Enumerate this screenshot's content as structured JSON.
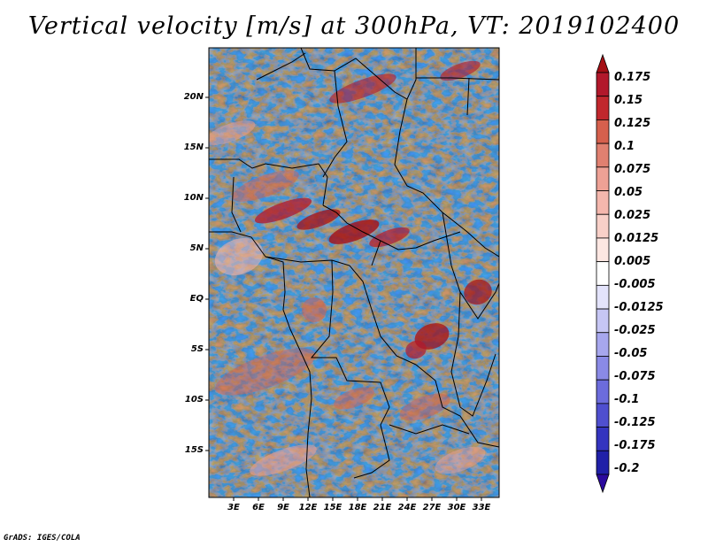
{
  "title": "Vertical velocity [m/s] at 300hPa, VT: 2019102400",
  "y_axis_labels": [
    "20N",
    "15N",
    "10N",
    "5N",
    "EQ",
    "5S",
    "10S",
    "15S"
  ],
  "x_axis_labels": [
    "3E",
    "6E",
    "9E",
    "12E",
    "15E",
    "18E",
    "21E",
    "24E",
    "27E",
    "30E",
    "33E"
  ],
  "colorbar": {
    "labels": [
      "0.175",
      "0.15",
      "0.125",
      "0.1",
      "0.075",
      "0.05",
      "0.025",
      "0.0125",
      "0.005",
      "-0.005",
      "-0.0125",
      "-0.025",
      "-0.05",
      "-0.075",
      "-0.1",
      "-0.125",
      "-0.175",
      "-0.2"
    ],
    "colors": [
      "#a50f15",
      "#b2182b",
      "#c1272d",
      "#d6604d",
      "#e08070",
      "#eea195",
      "#f4b7ad",
      "#f8d0c8",
      "#fde7e2",
      "#ffffff",
      "#e3e3fb",
      "#c6c6f4",
      "#a7a7ee",
      "#8a8ae6",
      "#6c6cdc",
      "#4f4fcf",
      "#3434bf",
      "#2020a8",
      "#2b0a9e"
    ]
  },
  "credit": "GrADS: IGES/COLA"
}
